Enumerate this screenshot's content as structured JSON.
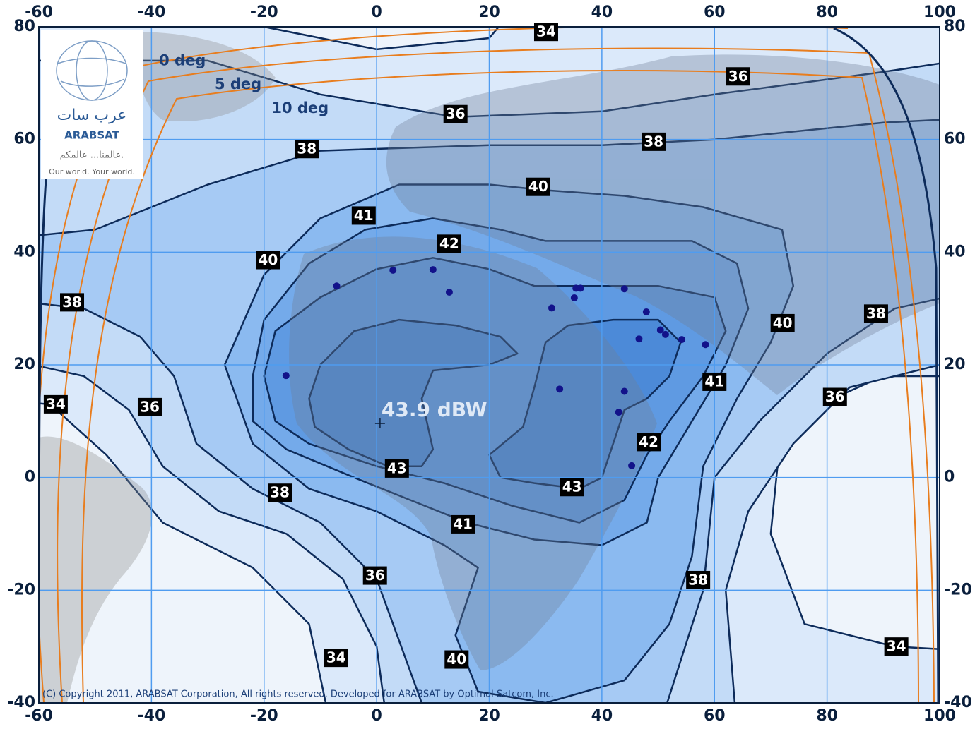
{
  "map": {
    "xlim": [
      -60,
      100
    ],
    "ylim": [
      -40,
      80
    ],
    "xticks": [
      -60,
      -40,
      -20,
      0,
      20,
      40,
      60,
      80,
      100
    ],
    "yticks": [
      -40,
      -20,
      0,
      20,
      40,
      60,
      80
    ],
    "contours": [
      {
        "level": 34,
        "points": [
          [
            -70,
            14
          ],
          [
            -58,
            13
          ],
          [
            -48,
            4
          ],
          [
            -38,
            -8
          ],
          [
            -22,
            -16
          ],
          [
            -12,
            -26
          ],
          [
            -8,
            -45
          ],
          [
            110,
            -45
          ],
          [
            110,
            -31
          ],
          [
            92,
            -30
          ],
          [
            76,
            -26
          ],
          [
            70,
            -10
          ],
          [
            72,
            10
          ],
          [
            90,
            18
          ],
          [
            110,
            18
          ],
          [
            110,
            90
          ],
          [
            30,
            90
          ],
          [
            20,
            78
          ],
          [
            0,
            76
          ],
          [
            -30,
            82
          ],
          [
            -70,
            82
          ]
        ]
      },
      {
        "level": 36,
        "points": [
          [
            -70,
            22
          ],
          [
            -52,
            18
          ],
          [
            -44,
            12
          ],
          [
            -38,
            2
          ],
          [
            -28,
            -6
          ],
          [
            -16,
            -10
          ],
          [
            -6,
            -18
          ],
          [
            0,
            -30
          ],
          [
            2,
            -45
          ],
          [
            64,
            -45
          ],
          [
            62,
            -20
          ],
          [
            66,
            -6
          ],
          [
            74,
            6
          ],
          [
            84,
            16
          ],
          [
            100,
            20
          ],
          [
            110,
            20
          ],
          [
            110,
            75
          ],
          [
            90,
            72
          ],
          [
            60,
            68
          ],
          [
            40,
            65
          ],
          [
            14,
            64
          ],
          [
            -10,
            68
          ],
          [
            -30,
            74
          ],
          [
            -70,
            74
          ]
        ]
      },
      {
        "level": 38,
        "points": [
          [
            -70,
            32
          ],
          [
            -52,
            30
          ],
          [
            -42,
            25
          ],
          [
            -36,
            18
          ],
          [
            -32,
            6
          ],
          [
            -22,
            -2
          ],
          [
            -10,
            -8
          ],
          [
            0,
            -18
          ],
          [
            8,
            -40
          ],
          [
            20,
            -45
          ],
          [
            50,
            -45
          ],
          [
            58,
            -20
          ],
          [
            60,
            0
          ],
          [
            68,
            10
          ],
          [
            80,
            22
          ],
          [
            92,
            30
          ],
          [
            110,
            34
          ],
          [
            110,
            64
          ],
          [
            90,
            63
          ],
          [
            60,
            60
          ],
          [
            40,
            59
          ],
          [
            20,
            59
          ],
          [
            -10,
            58
          ],
          [
            -30,
            52
          ],
          [
            -50,
            44
          ],
          [
            -70,
            42
          ]
        ]
      },
      {
        "level": 40,
        "points": [
          [
            -27,
            20
          ],
          [
            -20,
            36
          ],
          [
            -10,
            46
          ],
          [
            4,
            52
          ],
          [
            20,
            52
          ],
          [
            30,
            51
          ],
          [
            44,
            50
          ],
          [
            58,
            48
          ],
          [
            72,
            44
          ],
          [
            74,
            34
          ],
          [
            70,
            24
          ],
          [
            64,
            14
          ],
          [
            58,
            2
          ],
          [
            56,
            -14
          ],
          [
            52,
            -26
          ],
          [
            44,
            -36
          ],
          [
            30,
            -40
          ],
          [
            18,
            -38
          ],
          [
            14,
            -28
          ],
          [
            18,
            -16
          ],
          [
            12,
            -12
          ],
          [
            0,
            -6
          ],
          [
            -12,
            -2
          ],
          [
            -22,
            6
          ]
        ]
      },
      {
        "level": 41,
        "points": [
          [
            -22,
            18
          ],
          [
            -20,
            28
          ],
          [
            -12,
            38
          ],
          [
            -2,
            44
          ],
          [
            10,
            46
          ],
          [
            22,
            44
          ],
          [
            30,
            42
          ],
          [
            40,
            42
          ],
          [
            56,
            42
          ],
          [
            64,
            38
          ],
          [
            66,
            30
          ],
          [
            62,
            20
          ],
          [
            56,
            10
          ],
          [
            50,
            0
          ],
          [
            48,
            -8
          ],
          [
            40,
            -12
          ],
          [
            28,
            -11
          ],
          [
            16,
            -8
          ],
          [
            6,
            -4
          ],
          [
            -4,
            0
          ],
          [
            -16,
            5
          ],
          [
            -22,
            10
          ]
        ]
      },
      {
        "level": 42,
        "points": [
          [
            -20,
            18
          ],
          [
            -18,
            26
          ],
          [
            -10,
            32
          ],
          [
            0,
            37
          ],
          [
            10,
            39
          ],
          [
            20,
            37
          ],
          [
            28,
            34
          ],
          [
            38,
            34
          ],
          [
            50,
            34
          ],
          [
            60,
            32
          ],
          [
            62,
            26
          ],
          [
            58,
            18
          ],
          [
            52,
            10
          ],
          [
            48,
            4
          ],
          [
            44,
            -4
          ],
          [
            36,
            -8
          ],
          [
            24,
            -5
          ],
          [
            12,
            -1
          ],
          [
            0,
            2
          ],
          [
            -12,
            6
          ],
          [
            -18,
            10
          ]
        ]
      },
      {
        "level": 43,
        "points": [
          [
            -12,
            14
          ],
          [
            -10,
            20
          ],
          [
            -4,
            26
          ],
          [
            4,
            28
          ],
          [
            14,
            27
          ],
          [
            22,
            25
          ],
          [
            25,
            22
          ],
          [
            20,
            20
          ],
          [
            10,
            19
          ],
          [
            8,
            14
          ],
          [
            10,
            5
          ],
          [
            8,
            2
          ],
          [
            2,
            2
          ],
          [
            -5,
            5
          ],
          [
            -11,
            9
          ]
        ]
      },
      {
        "level": 43,
        "points": [
          [
            20,
            4
          ],
          [
            26,
            9
          ],
          [
            28,
            16
          ],
          [
            30,
            24
          ],
          [
            34,
            27
          ],
          [
            42,
            28
          ],
          [
            50,
            28
          ],
          [
            54,
            24
          ],
          [
            52,
            18
          ],
          [
            48,
            14
          ],
          [
            44,
            12
          ],
          [
            42,
            6
          ],
          [
            40,
            0
          ],
          [
            36,
            -2
          ],
          [
            28,
            -1
          ],
          [
            22,
            0
          ]
        ]
      }
    ],
    "labels": [
      {
        "value": 34,
        "lon": 30.1,
        "lat": 79.1
      },
      {
        "value": 36,
        "lon": 64.2,
        "lat": 71.2
      },
      {
        "value": 36,
        "lon": 14,
        "lat": 64.5
      },
      {
        "value": 38,
        "lon": -12.4,
        "lat": 58.3
      },
      {
        "value": 38,
        "lon": 49.2,
        "lat": 59.6
      },
      {
        "value": 40,
        "lon": 28.7,
        "lat": 51.6
      },
      {
        "value": 41,
        "lon": -2.3,
        "lat": 46.5
      },
      {
        "value": 42,
        "lon": 12.9,
        "lat": 41.5
      },
      {
        "value": 40,
        "lon": -19.3,
        "lat": 38.6
      },
      {
        "value": 38,
        "lon": -54.1,
        "lat": 31.1
      },
      {
        "value": 40,
        "lon": 72.1,
        "lat": 27.4
      },
      {
        "value": 38,
        "lon": 88.7,
        "lat": 29.1
      },
      {
        "value": 41,
        "lon": 60,
        "lat": 17
      },
      {
        "value": 36,
        "lon": 81.4,
        "lat": 14.3
      },
      {
        "value": 34,
        "lon": -57,
        "lat": 13
      },
      {
        "value": 36,
        "lon": -40.3,
        "lat": 12.5
      },
      {
        "value": 42,
        "lon": 48.3,
        "lat": 6.3
      },
      {
        "value": 43,
        "lon": 3.6,
        "lat": 1.6
      },
      {
        "value": 43,
        "lon": 34.7,
        "lat": -1.7
      },
      {
        "value": 38,
        "lon": -17.2,
        "lat": -2.7
      },
      {
        "value": 41,
        "lon": 15.3,
        "lat": -8.3
      },
      {
        "value": 36,
        "lon": -0.3,
        "lat": -17.4
      },
      {
        "value": 38,
        "lon": 57.1,
        "lat": -18.2
      },
      {
        "value": 34,
        "lon": 92.3,
        "lat": -30
      },
      {
        "value": 34,
        "lon": -7.2,
        "lat": -32
      },
      {
        "value": 40,
        "lon": 14.2,
        "lat": -32.3
      }
    ],
    "elevation_labels": [
      {
        "text": "0 deg",
        "lon": -34.5,
        "lat": 73.9
      },
      {
        "text": "5 deg",
        "lon": -24.6,
        "lat": 69.7
      },
      {
        "text": "10 deg",
        "lon": -13.6,
        "lat": 65.5
      }
    ],
    "sites": [
      [
        -7.1,
        34
      ],
      [
        2.9,
        36.8
      ],
      [
        10,
        36.9
      ],
      [
        12.9,
        32.9
      ],
      [
        -16.1,
        18.1
      ],
      [
        31.1,
        30.1
      ],
      [
        35.4,
        33.6
      ],
      [
        36.2,
        33.6
      ],
      [
        35.1,
        31.9
      ],
      [
        44,
        33.5
      ],
      [
        47.9,
        29.4
      ],
      [
        46.6,
        24.6
      ],
      [
        50.4,
        26.2
      ],
      [
        51.3,
        25.4
      ],
      [
        54.2,
        24.5
      ],
      [
        58.4,
        23.6
      ],
      [
        32.5,
        15.7
      ],
      [
        44,
        15.3
      ],
      [
        43,
        11.6
      ],
      [
        45.3,
        2.1
      ]
    ],
    "peak": {
      "label": "43.9 dBW",
      "lon": 0.6,
      "lat": 9.6
    }
  },
  "logo": {
    "arabic": "عرب سات",
    "name": "ARABSAT",
    "slogan_arabic": "عالمنا... عالمكم.",
    "slogan": "Our world. Your world."
  },
  "copyright": "(C) Copyright 2011, ARABSAT Corporation, All rights reserved.  Developed for ARABSAT by Optimal Satcom, Inc."
}
